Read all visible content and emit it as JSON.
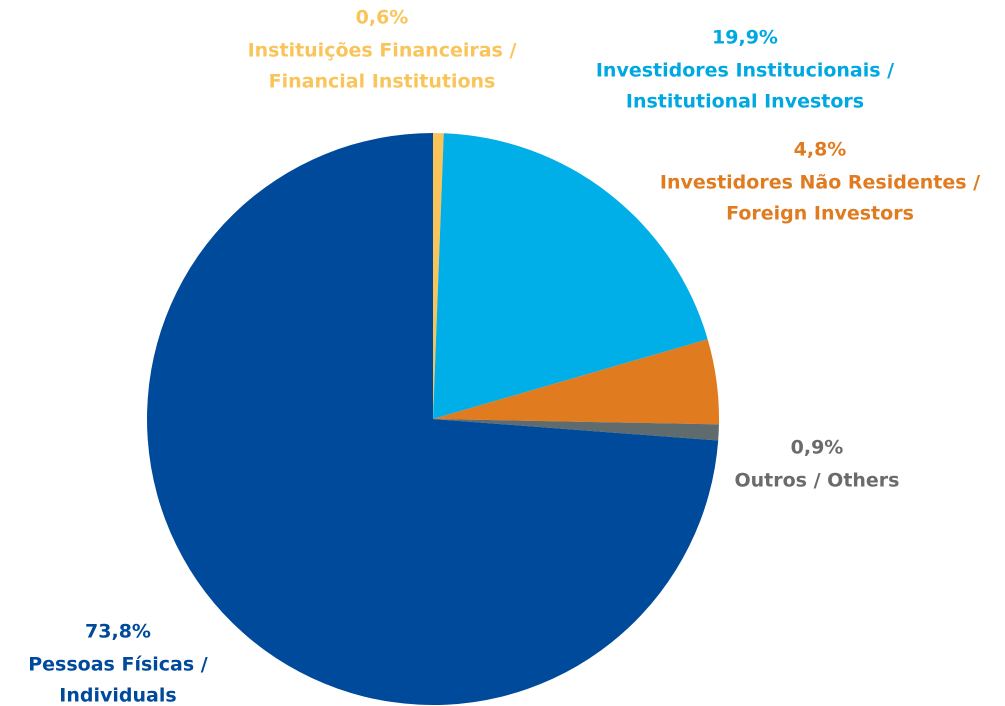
{
  "chart_data": {
    "type": "pie",
    "categories": [
      [
        "Instituições Financeiras /",
        "Financial Institutions"
      ],
      [
        "Investidores Institucionais /",
        "Institutional Investors"
      ],
      [
        "Investidores Não Residentes /",
        "Foreign Investors"
      ],
      [
        "Outros / Others"
      ],
      [
        "Pessoas Físicas /",
        "Individuals"
      ]
    ],
    "values": [
      0.6,
      19.9,
      4.8,
      0.9,
      73.8
    ],
    "value_labels": [
      "0,6%",
      "19,9%",
      "4,8%",
      "0,9%",
      "73,8%"
    ],
    "colors": [
      "#f9c55a",
      "#00aee8",
      "#e07b20",
      "#5f6b6d",
      "#004a9c"
    ],
    "label_colors": [
      "#f9c55a",
      "#00a8e1",
      "#e07b20",
      "#6b6b6b",
      "#004a9c"
    ]
  }
}
